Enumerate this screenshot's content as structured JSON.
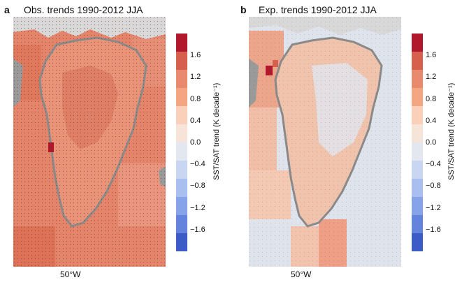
{
  "panels": [
    {
      "letter": "a",
      "title": "Obs. trends 1990-2012 JJA",
      "lon_label": "50°W",
      "colorbar": {
        "label": "SST/SAT trend (K decade⁻¹)",
        "ticks": [
          "1.6",
          "1.2",
          "0.8",
          "0.4",
          "0.0",
          "−0.4",
          "−0.8",
          "−1.2",
          "−1.6"
        ]
      }
    },
    {
      "letter": "b",
      "title": "Exp. trends 1990-2012 JJA",
      "lon_label": "50°W",
      "colorbar": {
        "label": "SST/SAT trend (K decade⁻¹)",
        "ticks": [
          "1.6",
          "1.2",
          "0.8",
          "0.4",
          "0.0",
          "−0.4",
          "−0.8",
          "−1.2",
          "−1.6"
        ]
      }
    }
  ],
  "colors": {
    "colorbar_levels": [
      "#b2182b",
      "#d6604d",
      "#e98a6e",
      "#f4a582",
      "#fbd0bb",
      "#f7e4d9",
      "#e3e7f0",
      "#c9d6f2",
      "#a9bff0",
      "#86a3ea",
      "#6383dd",
      "#3b5bc7"
    ],
    "obs_ocean": "#e4846b",
    "obs_land": "#e99378",
    "exp_ocean": "#dfe3ec",
    "exp_land": "#f0c3ad",
    "coast_gray": "#8a8a8a"
  }
}
